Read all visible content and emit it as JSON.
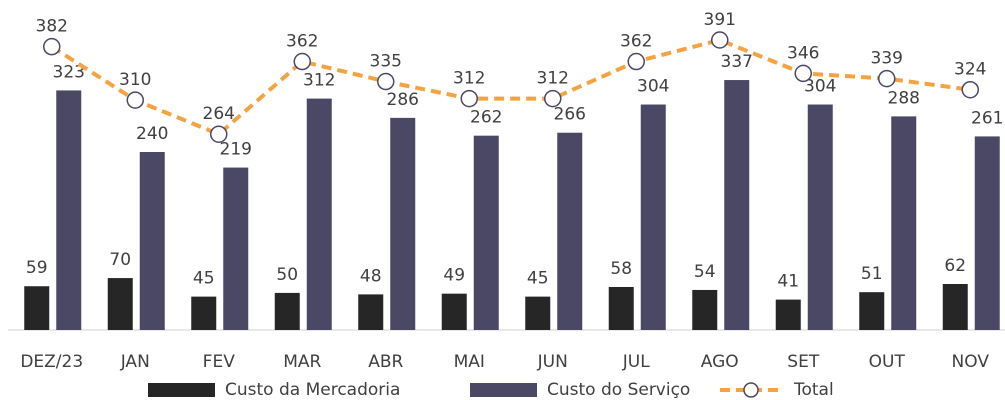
{
  "chart_data": {
    "type": "bar-line",
    "categories": [
      "DEZ/23",
      "JAN",
      "FEV",
      "MAR",
      "ABR",
      "MAI",
      "JUN",
      "JUL",
      "AGO",
      "SET",
      "OUT",
      "NOV"
    ],
    "series": [
      {
        "name": "Custo da Mercadoria",
        "type": "bar",
        "color": "#262626",
        "values": [
          59,
          70,
          45,
          50,
          48,
          49,
          45,
          58,
          54,
          41,
          51,
          62
        ]
      },
      {
        "name": "Custo do Serviço",
        "type": "bar",
        "color": "#4a4864",
        "values": [
          323,
          240,
          219,
          312,
          286,
          262,
          266,
          304,
          337,
          304,
          288,
          261
        ]
      },
      {
        "name": "Total",
        "type": "line",
        "color": "#f4a340",
        "values": [
          382,
          310,
          264,
          362,
          335,
          312,
          312,
          362,
          391,
          346,
          339,
          324
        ]
      }
    ],
    "legend": "bottom"
  }
}
